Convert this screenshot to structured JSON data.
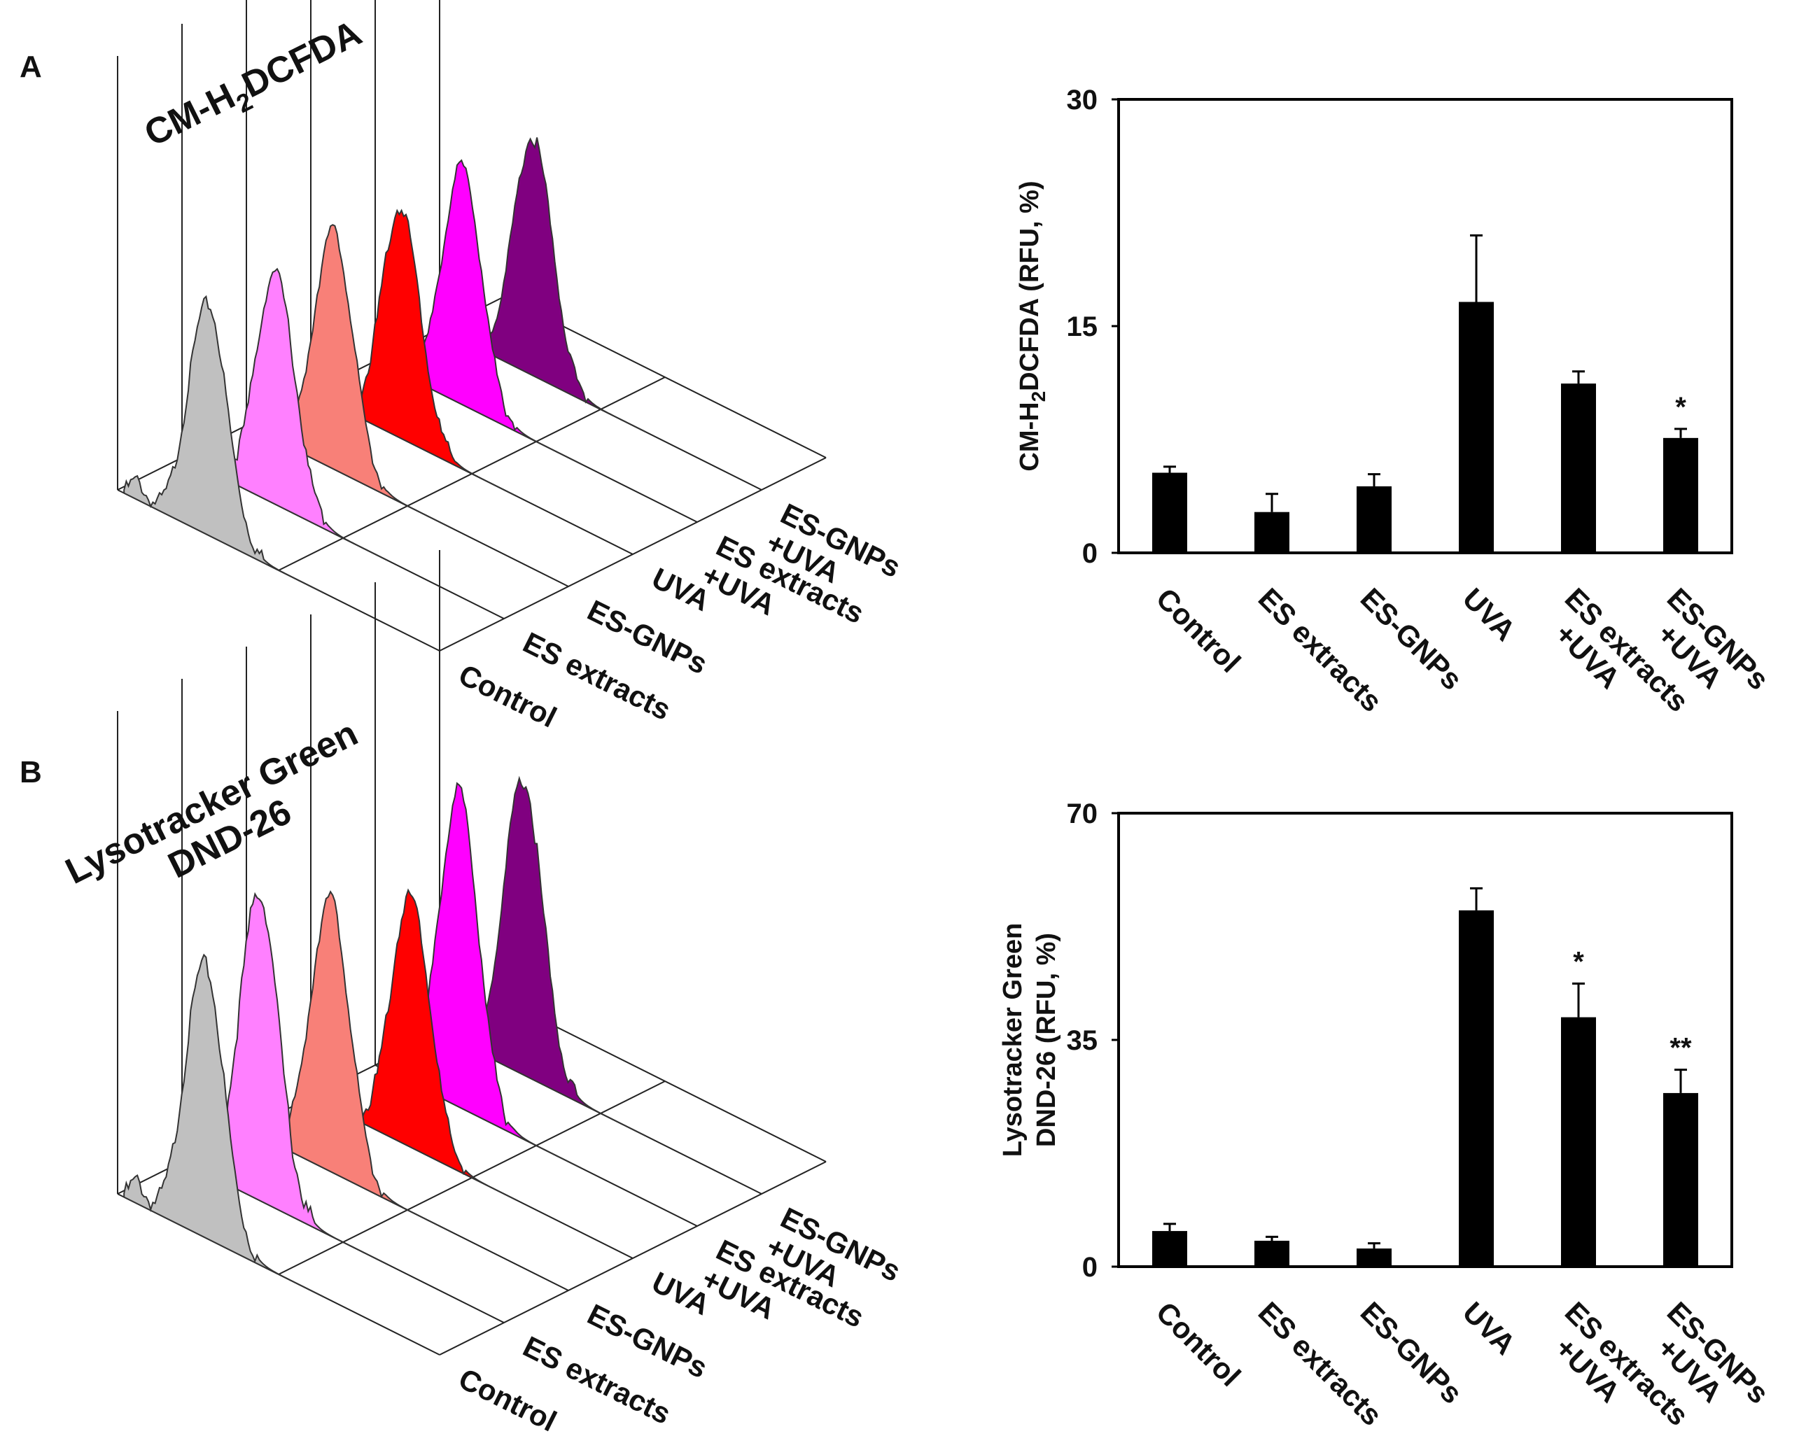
{
  "figure": {
    "panels": [
      {
        "label": "A",
        "histogram": {
          "title_prefix": "CM-H",
          "title_sub": "2",
          "title_suffix": "DCFDA",
          "title_lines": [],
          "conditions": [
            "Control",
            "ES extracts",
            "ES-GNPs",
            "UVA",
            "ES extracts|+UVA",
            "ES-GNPs|+UVA"
          ],
          "colors": [
            "#c0c0c0",
            "#ff80ff",
            "#f88078",
            "#ff0000",
            "#ff00ff",
            "#800080"
          ]
        }
      },
      {
        "label": "B",
        "histogram": {
          "title_prefix": "",
          "title_sub": "",
          "title_suffix": "",
          "title_lines": [
            "Lysotracker Green",
            "DND-26"
          ],
          "conditions": [
            "Control",
            "ES extracts",
            "ES-GNPs",
            "UVA",
            "ES extracts|+UVA",
            "ES-GNPs|+UVA"
          ],
          "colors": [
            "#c0c0c0",
            "#ff80ff",
            "#f88078",
            "#ff0000",
            "#ff00ff",
            "#800080"
          ]
        }
      }
    ]
  },
  "chart_data": [
    {
      "type": "bar",
      "panel": "A",
      "categories": [
        "Control",
        "ES extracts",
        "ES-GNPs",
        "UVA",
        "ES extracts|+UVA",
        "ES-GNPs|+UVA"
      ],
      "values": [
        5.3,
        2.7,
        4.4,
        16.6,
        11.2,
        7.6
      ],
      "errors": [
        0.4,
        1.2,
        0.8,
        4.4,
        0.8,
        0.6
      ],
      "significance": [
        "",
        "",
        "",
        "",
        "",
        "*"
      ],
      "ylabel_lines": [
        "CM-H{2}DCFDA  (RFU, %)"
      ],
      "yticks": [
        0,
        15,
        30
      ],
      "ylim": [
        0,
        30
      ],
      "bar_color": "#000000"
    },
    {
      "type": "bar",
      "panel": "B",
      "categories": [
        "Control",
        "ES extracts",
        "ES-GNPs",
        "UVA",
        "ES extracts|+UVA",
        "ES-GNPs|+UVA"
      ],
      "values": [
        5.5,
        4.0,
        2.8,
        55.0,
        38.5,
        26.8
      ],
      "errors": [
        1.1,
        0.6,
        0.8,
        3.4,
        5.2,
        3.6
      ],
      "significance": [
        "",
        "",
        "",
        "",
        "*",
        "**"
      ],
      "ylabel_lines": [
        "Lysotracker Green",
        "DND-26 (RFU, %)"
      ],
      "yticks": [
        0,
        35,
        70
      ],
      "ylim": [
        0,
        70
      ],
      "bar_color": "#000000"
    }
  ]
}
